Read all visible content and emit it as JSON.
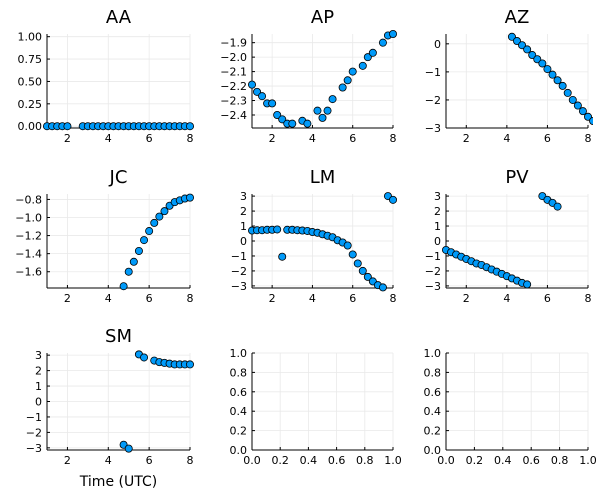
{
  "style": {
    "marker_color": "#009af9",
    "marker_stroke": "#000000",
    "grid_color": "#e9e9e9"
  },
  "chart_data": [
    {
      "type": "scatter",
      "title": "AA",
      "xlabel": "",
      "grid": true,
      "xlim": [
        1,
        8
      ],
      "ylim": [
        -0.02,
        1.03
      ],
      "xticks": [
        2,
        4,
        6,
        8
      ],
      "xtick_labels": [
        "2",
        "4",
        "6",
        "8"
      ],
      "yticks": [
        0,
        0.25,
        0.5,
        0.75,
        1.0
      ],
      "ytick_labels": [
        "0.00",
        "0.25",
        "0.50",
        "0.75",
        "1.00"
      ],
      "points": [
        [
          1.0,
          0
        ],
        [
          1.25,
          0
        ],
        [
          1.5,
          0
        ],
        [
          1.75,
          0
        ],
        [
          2.0,
          0
        ],
        [
          2.75,
          0
        ],
        [
          3.0,
          0
        ],
        [
          3.25,
          0
        ],
        [
          3.5,
          0
        ],
        [
          3.75,
          0
        ],
        [
          4.0,
          0
        ],
        [
          4.25,
          0
        ],
        [
          4.5,
          0
        ],
        [
          4.75,
          0
        ],
        [
          5.0,
          0
        ],
        [
          5.25,
          0
        ],
        [
          5.5,
          0
        ],
        [
          5.75,
          0
        ],
        [
          6.0,
          0
        ],
        [
          6.25,
          0
        ],
        [
          6.5,
          0
        ],
        [
          6.75,
          0
        ],
        [
          7.0,
          0
        ],
        [
          7.25,
          0
        ],
        [
          7.5,
          0
        ],
        [
          7.75,
          0
        ],
        [
          8.0,
          0
        ]
      ]
    },
    {
      "type": "scatter",
      "title": "AP",
      "xlabel": "",
      "grid": true,
      "xlim": [
        1,
        8
      ],
      "ylim": [
        -2.49,
        -1.84
      ],
      "xticks": [
        2,
        4,
        6,
        8
      ],
      "xtick_labels": [
        "2",
        "4",
        "6",
        "8"
      ],
      "yticks": [
        -2.4,
        -2.3,
        -2.2,
        -2.1,
        -2.0,
        -1.9
      ],
      "ytick_labels": [
        "−2.4",
        "−2.3",
        "−2.2",
        "−2.1",
        "−2.0",
        "−1.9"
      ],
      "points": [
        [
          1.0,
          -2.19
        ],
        [
          1.25,
          -2.24
        ],
        [
          1.5,
          -2.27
        ],
        [
          1.75,
          -2.32
        ],
        [
          2.0,
          -2.32
        ],
        [
          2.25,
          -2.4
        ],
        [
          2.5,
          -2.43
        ],
        [
          2.75,
          -2.46
        ],
        [
          3.0,
          -2.46
        ],
        [
          3.5,
          -2.44
        ],
        [
          3.75,
          -2.46
        ],
        [
          4.25,
          -2.37
        ],
        [
          4.5,
          -2.42
        ],
        [
          4.75,
          -2.37
        ],
        [
          5.0,
          -2.29
        ],
        [
          5.5,
          -2.21
        ],
        [
          5.75,
          -2.16
        ],
        [
          6.0,
          -2.1
        ],
        [
          6.5,
          -2.06
        ],
        [
          6.75,
          -2.0
        ],
        [
          7.0,
          -1.97
        ],
        [
          7.5,
          -1.9
        ],
        [
          7.75,
          -1.85
        ],
        [
          8.0,
          -1.84
        ]
      ]
    },
    {
      "type": "scatter",
      "title": "AZ",
      "xlabel": "",
      "grid": true,
      "xlim": [
        1,
        8
      ],
      "ylim": [
        -3.0,
        0.35
      ],
      "xticks": [
        2,
        4,
        6,
        8
      ],
      "xtick_labels": [
        "2",
        "4",
        "6",
        "8"
      ],
      "yticks": [
        -3,
        -2,
        -1,
        0
      ],
      "ytick_labels": [
        "−3",
        "−2",
        "−1",
        "0"
      ],
      "points": [
        [
          4.25,
          0.25
        ],
        [
          4.5,
          0.1
        ],
        [
          4.75,
          -0.05
        ],
        [
          5.0,
          -0.2
        ],
        [
          5.25,
          -0.4
        ],
        [
          5.5,
          -0.55
        ],
        [
          5.75,
          -0.7
        ],
        [
          6.0,
          -0.9
        ],
        [
          6.25,
          -1.1
        ],
        [
          6.5,
          -1.3
        ],
        [
          6.75,
          -1.5
        ],
        [
          7.0,
          -1.75
        ],
        [
          7.25,
          -2.0
        ],
        [
          7.5,
          -2.2
        ],
        [
          7.75,
          -2.4
        ],
        [
          8.0,
          -2.6
        ],
        [
          8.25,
          -2.75
        ],
        [
          8.5,
          -2.9
        ]
      ]
    },
    {
      "type": "scatter",
      "title": "JC",
      "xlabel": "",
      "grid": true,
      "xlim": [
        1,
        8
      ],
      "ylim": [
        -1.78,
        -0.74
      ],
      "xticks": [
        2,
        4,
        6,
        8
      ],
      "xtick_labels": [
        "2",
        "4",
        "6",
        "8"
      ],
      "yticks": [
        -1.6,
        -1.4,
        -1.2,
        -1.0,
        -0.8
      ],
      "ytick_labels": [
        "−1.6",
        "−1.4",
        "−1.2",
        "−1.0",
        "−0.8"
      ],
      "points": [
        [
          4.75,
          -1.76
        ],
        [
          5.0,
          -1.6
        ],
        [
          5.25,
          -1.49
        ],
        [
          5.5,
          -1.37
        ],
        [
          5.75,
          -1.25
        ],
        [
          6.0,
          -1.15
        ],
        [
          6.25,
          -1.06
        ],
        [
          6.5,
          -0.99
        ],
        [
          6.75,
          -0.93
        ],
        [
          7.0,
          -0.87
        ],
        [
          7.25,
          -0.83
        ],
        [
          7.5,
          -0.81
        ],
        [
          7.75,
          -0.79
        ],
        [
          8.0,
          -0.78
        ]
      ]
    },
    {
      "type": "scatter",
      "title": "LM",
      "xlabel": "",
      "grid": true,
      "xlim": [
        1,
        8
      ],
      "ylim": [
        -3.14,
        3.14
      ],
      "xticks": [
        2,
        4,
        6,
        8
      ],
      "xtick_labels": [
        "2",
        "4",
        "6",
        "8"
      ],
      "yticks": [
        -3,
        -2,
        -1,
        0,
        1,
        2,
        3
      ],
      "ytick_labels": [
        "−3",
        "−2",
        "−1",
        "0",
        "1",
        "2",
        "3"
      ],
      "points": [
        [
          1.0,
          0.7
        ],
        [
          1.25,
          0.72
        ],
        [
          1.5,
          0.72
        ],
        [
          1.75,
          0.75
        ],
        [
          2.0,
          0.75
        ],
        [
          2.25,
          0.77
        ],
        [
          2.5,
          -1.05
        ],
        [
          2.75,
          0.75
        ],
        [
          3.0,
          0.75
        ],
        [
          3.25,
          0.72
        ],
        [
          3.5,
          0.7
        ],
        [
          3.75,
          0.67
        ],
        [
          4.0,
          0.6
        ],
        [
          4.25,
          0.55
        ],
        [
          4.5,
          0.45
        ],
        [
          4.75,
          0.35
        ],
        [
          5.0,
          0.25
        ],
        [
          5.25,
          0.05
        ],
        [
          5.5,
          -0.1
        ],
        [
          5.75,
          -0.3
        ],
        [
          6.0,
          -0.9
        ],
        [
          6.25,
          -1.5
        ],
        [
          6.5,
          -2.0
        ],
        [
          6.75,
          -2.4
        ],
        [
          7.0,
          -2.7
        ],
        [
          7.25,
          -2.95
        ],
        [
          7.5,
          -3.1
        ],
        [
          7.75,
          3.0
        ],
        [
          8.0,
          2.75
        ]
      ]
    },
    {
      "type": "scatter",
      "title": "PV",
      "xlabel": "",
      "grid": true,
      "xlim": [
        1,
        8
      ],
      "ylim": [
        -3.14,
        3.14
      ],
      "xticks": [
        2,
        4,
        6,
        8
      ],
      "xtick_labels": [
        "2",
        "4",
        "6",
        "8"
      ],
      "yticks": [
        -3,
        -2,
        -1,
        0,
        1,
        2,
        3
      ],
      "ytick_labels": [
        "−3",
        "−2",
        "−1",
        "0",
        "1",
        "2",
        "3"
      ],
      "points": [
        [
          1.0,
          -0.6
        ],
        [
          1.25,
          -0.75
        ],
        [
          1.5,
          -0.9
        ],
        [
          1.75,
          -1.05
        ],
        [
          2.0,
          -1.2
        ],
        [
          2.25,
          -1.35
        ],
        [
          2.5,
          -1.5
        ],
        [
          2.75,
          -1.6
        ],
        [
          3.0,
          -1.75
        ],
        [
          3.25,
          -1.9
        ],
        [
          3.5,
          -2.05
        ],
        [
          3.75,
          -2.2
        ],
        [
          4.0,
          -2.35
        ],
        [
          4.25,
          -2.5
        ],
        [
          4.5,
          -2.65
        ],
        [
          4.75,
          -2.8
        ],
        [
          5.0,
          -2.9
        ],
        [
          5.75,
          3.0
        ],
        [
          6.0,
          2.75
        ],
        [
          6.25,
          2.55
        ],
        [
          6.5,
          2.3
        ]
      ]
    },
    {
      "type": "scatter",
      "title": "SM",
      "xlabel": "Time (UTC)",
      "grid": true,
      "xlim": [
        1,
        8
      ],
      "ylim": [
        -3.14,
        3.14
      ],
      "xticks": [
        2,
        4,
        6,
        8
      ],
      "xtick_labels": [
        "2",
        "4",
        "6",
        "8"
      ],
      "yticks": [
        -3,
        -2,
        -1,
        0,
        1,
        2,
        3
      ],
      "ytick_labels": [
        "−3",
        "−2",
        "−1",
        "0",
        "1",
        "2",
        "3"
      ],
      "points": [
        [
          4.75,
          -2.8
        ],
        [
          5.0,
          -3.05
        ],
        [
          5.5,
          3.05
        ],
        [
          5.75,
          2.85
        ],
        [
          6.25,
          2.65
        ],
        [
          6.5,
          2.55
        ],
        [
          6.75,
          2.5
        ],
        [
          7.0,
          2.45
        ],
        [
          7.25,
          2.4
        ],
        [
          7.5,
          2.4
        ],
        [
          7.75,
          2.4
        ],
        [
          8.0,
          2.4
        ]
      ]
    },
    {
      "type": "scatter",
      "title": "",
      "xlabel": "",
      "grid": true,
      "xlim": [
        0,
        1
      ],
      "ylim": [
        0,
        1
      ],
      "xticks": [
        0,
        0.2,
        0.4,
        0.6,
        0.8,
        1.0
      ],
      "xtick_labels": [
        "0.0",
        "0.2",
        "0.4",
        "0.6",
        "0.8",
        "1.0"
      ],
      "yticks": [
        0,
        0.2,
        0.4,
        0.6,
        0.8,
        1.0
      ],
      "ytick_labels": [
        "0.0",
        "0.2",
        "0.4",
        "0.6",
        "0.8",
        "1.0"
      ],
      "points": []
    },
    {
      "type": "scatter",
      "title": "",
      "xlabel": "",
      "grid": true,
      "xlim": [
        0,
        1
      ],
      "ylim": [
        0,
        1
      ],
      "xticks": [
        0,
        0.2,
        0.4,
        0.6,
        0.8,
        1.0
      ],
      "xtick_labels": [
        "0.0",
        "0.2",
        "0.4",
        "0.6",
        "0.8",
        "1.0"
      ],
      "yticks": [
        0,
        0.2,
        0.4,
        0.6,
        0.8,
        1.0
      ],
      "ytick_labels": [
        "0.0",
        "0.2",
        "0.4",
        "0.6",
        "0.8",
        "1.0"
      ],
      "points": []
    }
  ]
}
